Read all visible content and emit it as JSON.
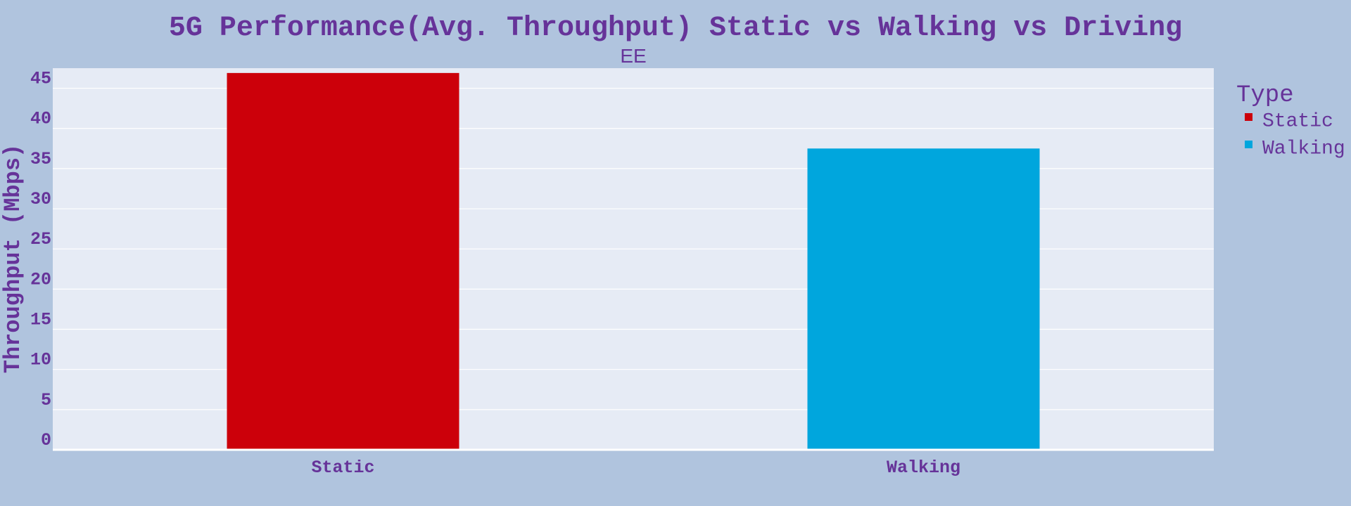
{
  "chart_data": {
    "type": "bar",
    "title": "5G Performance(Avg. Throughput) Static vs Walking vs Driving",
    "subtitle": "EE",
    "xlabel": "",
    "ylabel": "Throughput (Mbps)",
    "categories": [
      "Static",
      "Walking"
    ],
    "values": [
      46.9,
      37.5
    ],
    "colors": [
      "#cc000a",
      "#00a6dd"
    ],
    "ylim": [
      0,
      47.5
    ],
    "yticks": [
      0,
      5,
      10,
      15,
      20,
      25,
      30,
      35,
      40,
      45
    ],
    "grid": true,
    "plot_background": "#e6ebf5",
    "page_background": "#b0c4de",
    "text_color": "#663399",
    "legend": {
      "title": "Type",
      "placement": "right",
      "items": [
        {
          "label": "Static",
          "color": "#cc000a"
        },
        {
          "label": "Walking",
          "color": "#00a6dd"
        }
      ]
    }
  }
}
